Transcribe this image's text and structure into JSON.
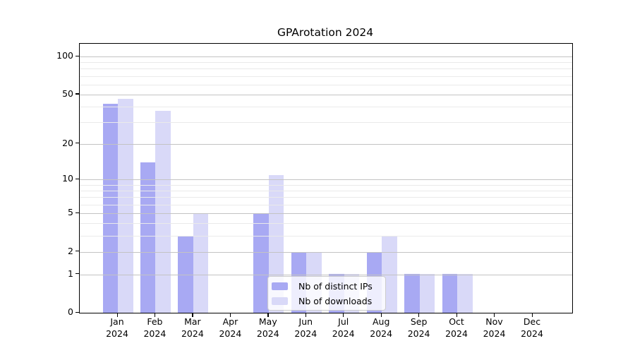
{
  "figure": {
    "kind": "matplotlib-bar-chart"
  },
  "chart_data": {
    "type": "bar",
    "title": "GPArotation 2024",
    "categories": [
      "Jan",
      "Feb",
      "Mar",
      "Apr",
      "May",
      "Jun",
      "Jul",
      "Aug",
      "Sep",
      "Oct",
      "Nov",
      "Dec"
    ],
    "year_label": "2024",
    "series": [
      {
        "name": "Nb of distinct IPs",
        "color": "#a8a9f3",
        "values": [
          42,
          14,
          3,
          0,
          5,
          2,
          1,
          2,
          1,
          1,
          0,
          0
        ]
      },
      {
        "name": "Nb of downloads",
        "color": "#d9d9f8",
        "values": [
          46,
          37,
          5,
          0,
          11,
          2,
          1,
          3,
          1,
          1,
          0,
          0
        ]
      }
    ],
    "xlabel": "",
    "ylabel": "",
    "yscale": "log1p",
    "ylim": [
      0,
      126
    ],
    "yticks": [
      0,
      1,
      2,
      5,
      10,
      20,
      50,
      100
    ],
    "yticks_minor": [
      3,
      4,
      6,
      7,
      8,
      9,
      30,
      40,
      60,
      70,
      80,
      90
    ],
    "grid": "horizontal",
    "legend_position": "lower center"
  }
}
